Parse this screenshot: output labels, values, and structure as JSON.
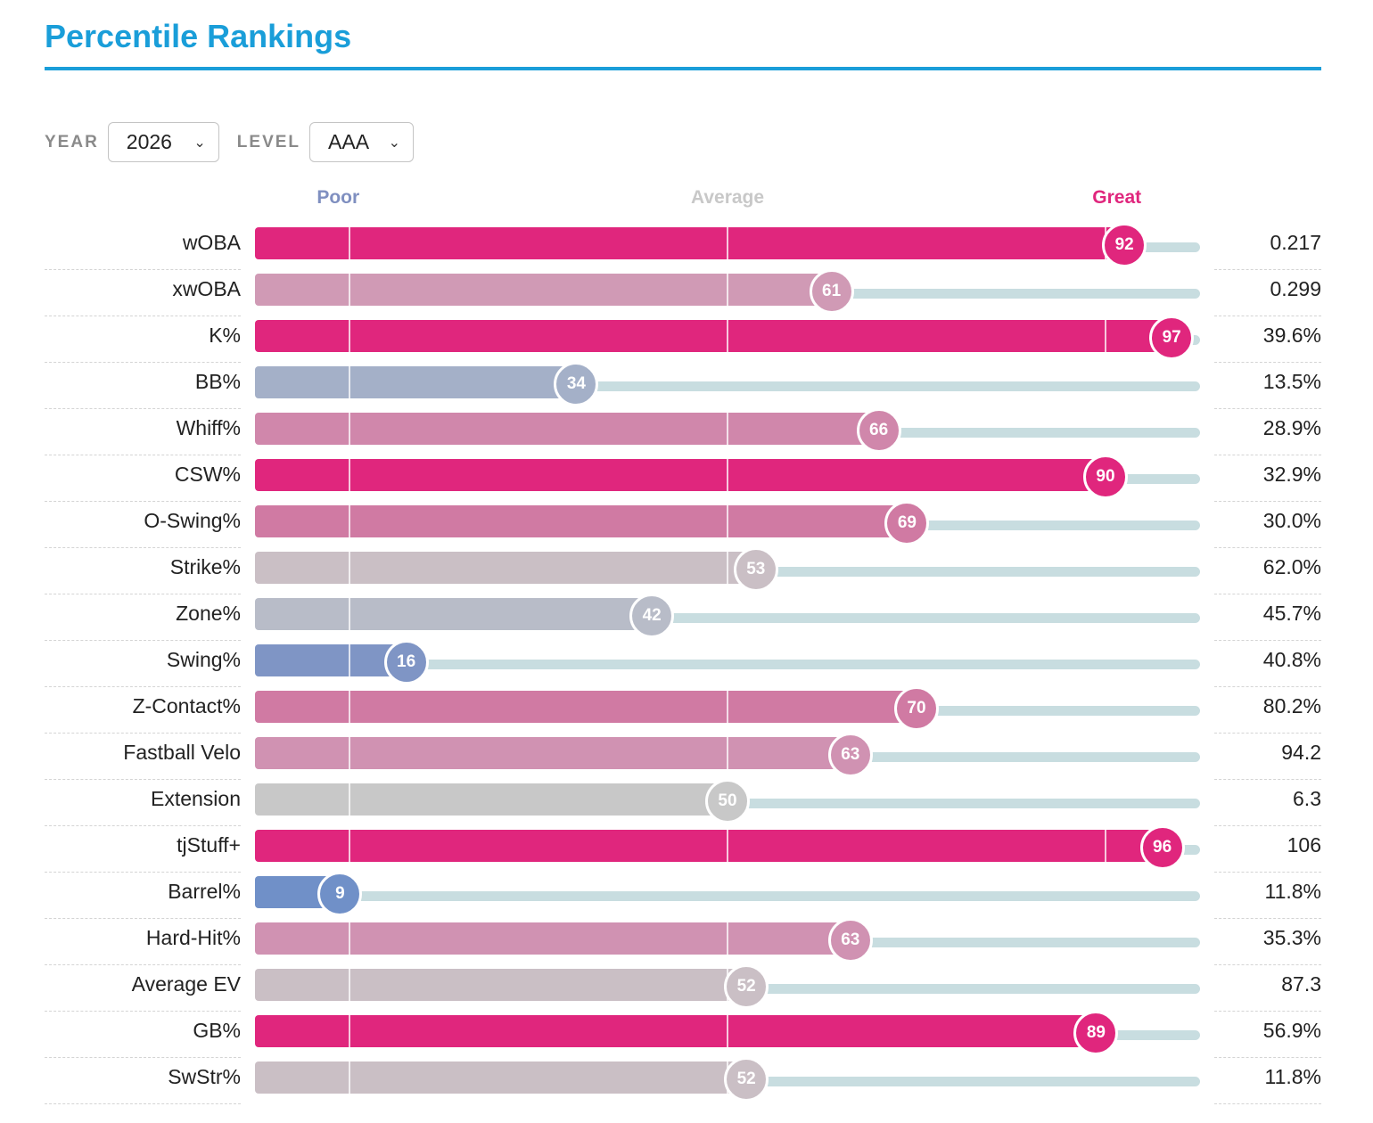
{
  "title": "Percentile Rankings",
  "filters": {
    "year_label": "YEAR",
    "year_value": "2026",
    "level_label": "LEVEL",
    "level_value": "AAA"
  },
  "legend": {
    "poor": "Poor",
    "average": "Average",
    "great": "Great",
    "poor_color": "#7f8fc0",
    "average_color": "#c8c8c8",
    "great_color": "#e0267d"
  },
  "chart_data": {
    "type": "bar",
    "orientation": "horizontal",
    "xlim": [
      0,
      100
    ],
    "rows": [
      {
        "label": "wOBA",
        "percentile": 92,
        "value": "0.217",
        "color": "#e0267d"
      },
      {
        "label": "xwOBA",
        "percentile": 61,
        "value": "0.299",
        "color": "#d09ab5"
      },
      {
        "label": "K%",
        "percentile": 97,
        "value": "39.6%",
        "color": "#e0267d"
      },
      {
        "label": "BB%",
        "percentile": 34,
        "value": "13.5%",
        "color": "#a4b0c8"
      },
      {
        "label": "Whiff%",
        "percentile": 66,
        "value": "28.9%",
        "color": "#d087ab"
      },
      {
        "label": "CSW%",
        "percentile": 90,
        "value": "32.9%",
        "color": "#e0267d"
      },
      {
        "label": "O-Swing%",
        "percentile": 69,
        "value": "30.0%",
        "color": "#d07aa3"
      },
      {
        "label": "Strike%",
        "percentile": 53,
        "value": "62.0%",
        "color": "#cabfc5"
      },
      {
        "label": "Zone%",
        "percentile": 42,
        "value": "45.7%",
        "color": "#b8bcc8"
      },
      {
        "label": "Swing%",
        "percentile": 16,
        "value": "40.8%",
        "color": "#7f95c5"
      },
      {
        "label": "Z-Contact%",
        "percentile": 70,
        "value": "80.2%",
        "color": "#d07aa3"
      },
      {
        "label": "Fastball Velo",
        "percentile": 63,
        "value": "94.2",
        "color": "#d092b2"
      },
      {
        "label": "Extension",
        "percentile": 50,
        "value": "6.3",
        "color": "#c8c8c8"
      },
      {
        "label": "tjStuff+",
        "percentile": 96,
        "value": "106",
        "color": "#e0267d"
      },
      {
        "label": "Barrel%",
        "percentile": 9,
        "value": "11.8%",
        "color": "#7090c8"
      },
      {
        "label": "Hard-Hit%",
        "percentile": 63,
        "value": "35.3%",
        "color": "#d092b2"
      },
      {
        "label": "Average EV",
        "percentile": 52,
        "value": "87.3",
        "color": "#cabfc5"
      },
      {
        "label": "GB%",
        "percentile": 89,
        "value": "56.9%",
        "color": "#e0267d"
      },
      {
        "label": "SwStr%",
        "percentile": 52,
        "value": "11.8%",
        "color": "#cabfc5"
      }
    ]
  }
}
